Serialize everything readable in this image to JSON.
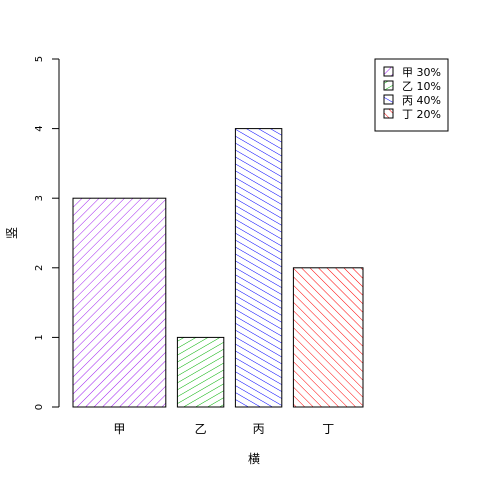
{
  "chart_data": {
    "type": "bar",
    "categories": [
      "甲",
      "乙",
      "丙",
      "丁"
    ],
    "values": [
      3,
      1,
      4,
      2
    ],
    "widths": [
      1.6,
      0.8,
      0.8,
      1.2
    ],
    "xlabel": "横",
    "ylabel": "竖",
    "ylim": [
      0,
      5
    ],
    "yticks": [
      "0",
      "1",
      "2",
      "3",
      "4",
      "5"
    ],
    "grid": false,
    "colors": [
      "#a020f0",
      "#00b000",
      "#0000ff",
      "#ff0000"
    ],
    "hatch_angles": [
      45,
      60,
      120,
      135
    ],
    "legend": {
      "position": "top-right",
      "entries": [
        "甲 30%",
        "乙 10%",
        "丙 40%",
        "丁 20%"
      ]
    }
  }
}
